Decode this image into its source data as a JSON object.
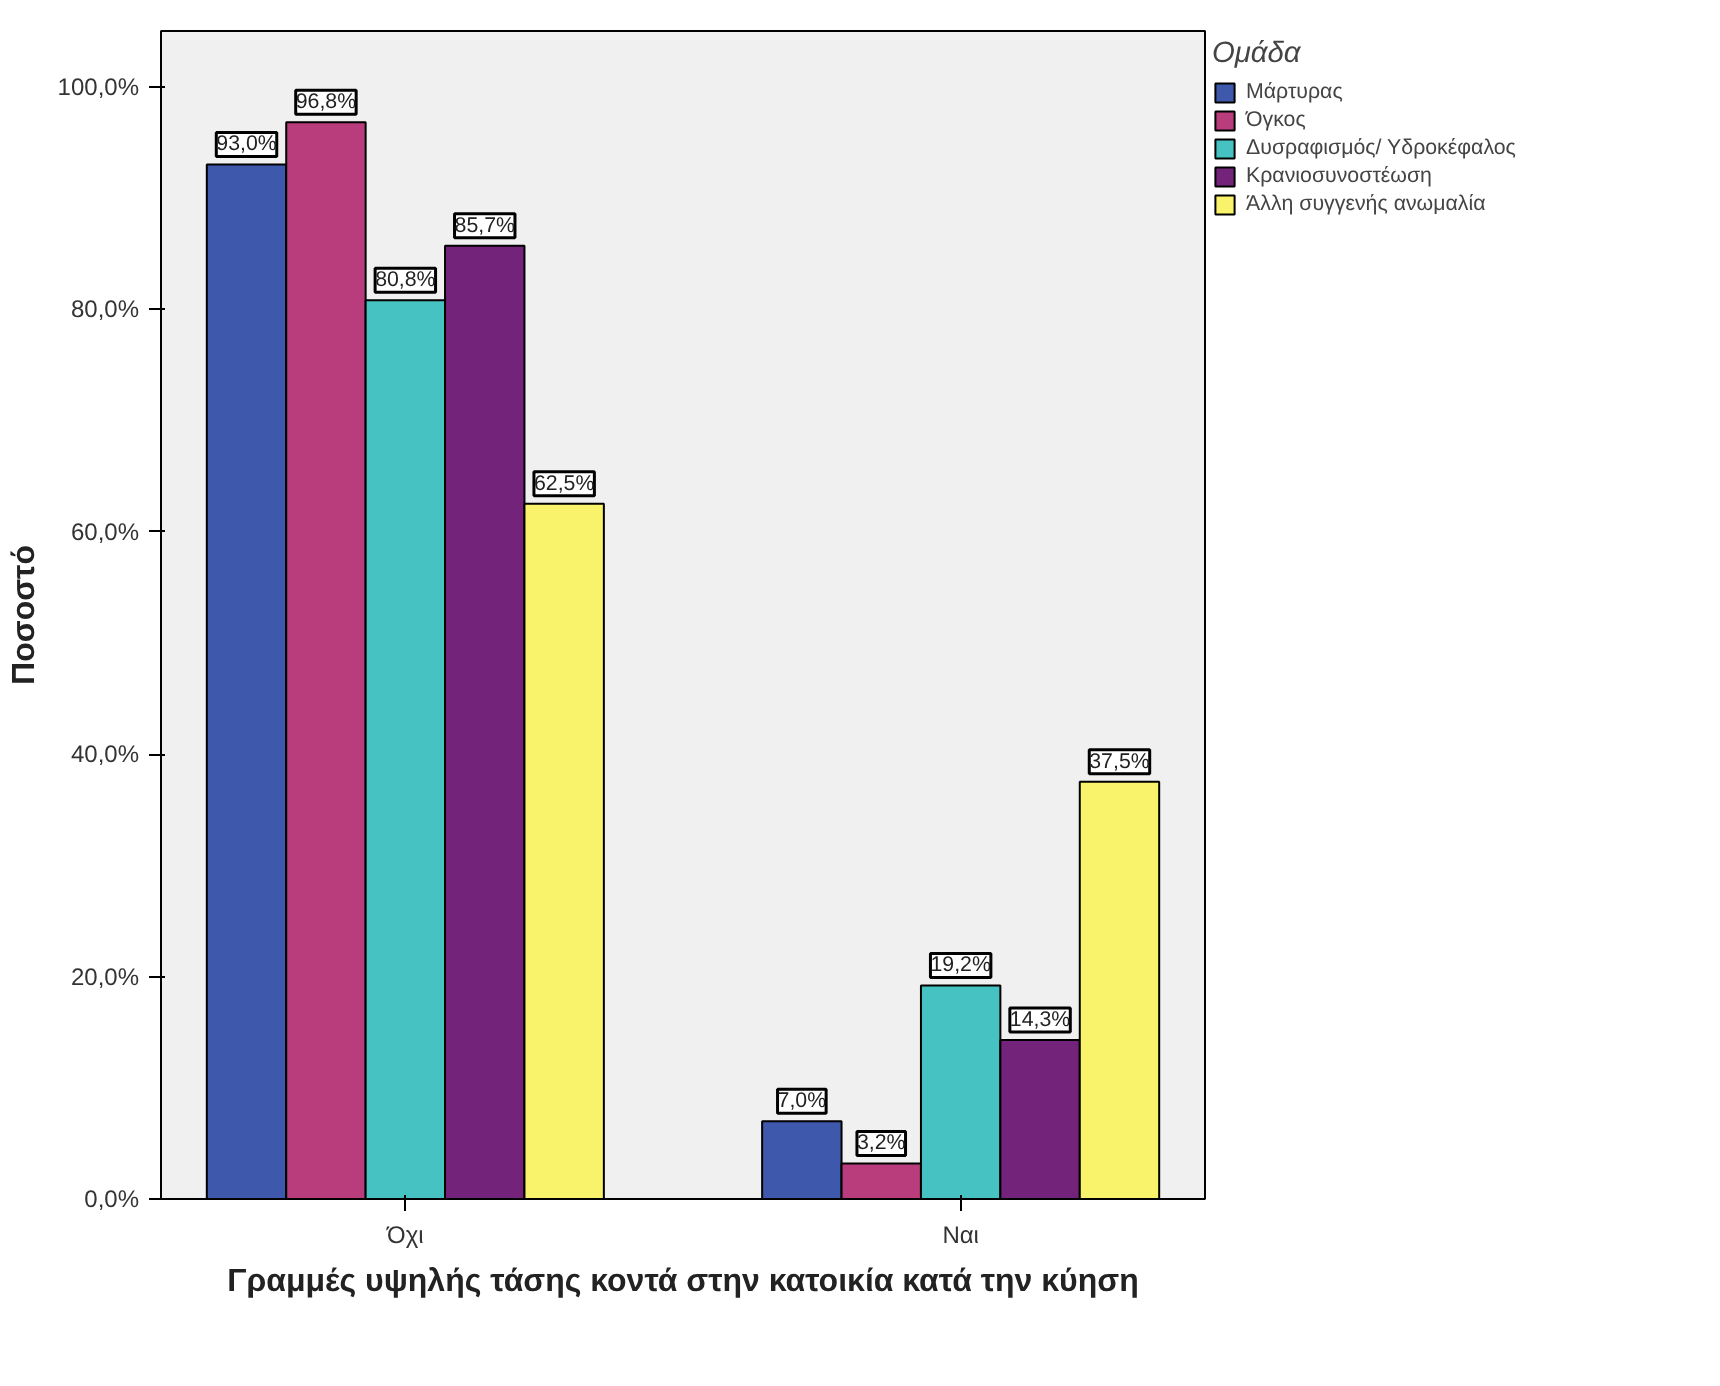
{
  "chart_data": {
    "type": "bar",
    "xlabel": "Γραμμές υψηλής τάσης κοντά στην κατοικία κατά την κύηση",
    "ylabel": "Ποσοστό",
    "legend_title": "Ομάδα",
    "categories": [
      "Όχι",
      "Ναι"
    ],
    "series": [
      {
        "name": "Μάρτυρας",
        "color": "#3e58ac",
        "values": [
          93.0,
          7.0
        ],
        "value_labels": [
          "93,0%",
          "7,0%"
        ]
      },
      {
        "name": "Όγκος",
        "color": "#b93c7c",
        "values": [
          96.8,
          3.2
        ],
        "value_labels": [
          "96,8%",
          "3,2%"
        ]
      },
      {
        "name": "Δυσραφισμός/ Υδροκέφαλος",
        "color": "#46c2c2",
        "values": [
          80.8,
          19.2
        ],
        "value_labels": [
          "80,8%",
          "19,2%"
        ]
      },
      {
        "name": "Κρανιοσυνοστέωση",
        "color": "#73247a",
        "values": [
          85.7,
          14.3
        ],
        "value_labels": [
          "85,7%",
          "14,3%"
        ]
      },
      {
        "name": "Άλλη συγγενής ανωμαλία",
        "color": "#f8f36a",
        "values": [
          62.5,
          37.5
        ],
        "value_labels": [
          "62,5%",
          "37,5%"
        ]
      }
    ],
    "ylim": [
      0,
      105
    ],
    "yticks": [
      {
        "value": 0,
        "label": "0,0%"
      },
      {
        "value": 20,
        "label": "20,0%"
      },
      {
        "value": 40,
        "label": "40,0%"
      },
      {
        "value": 60,
        "label": "60,0%"
      },
      {
        "value": 80,
        "label": "80,0%"
      },
      {
        "value": 100,
        "label": "100,0%"
      }
    ],
    "grid": false,
    "legend": "right"
  }
}
